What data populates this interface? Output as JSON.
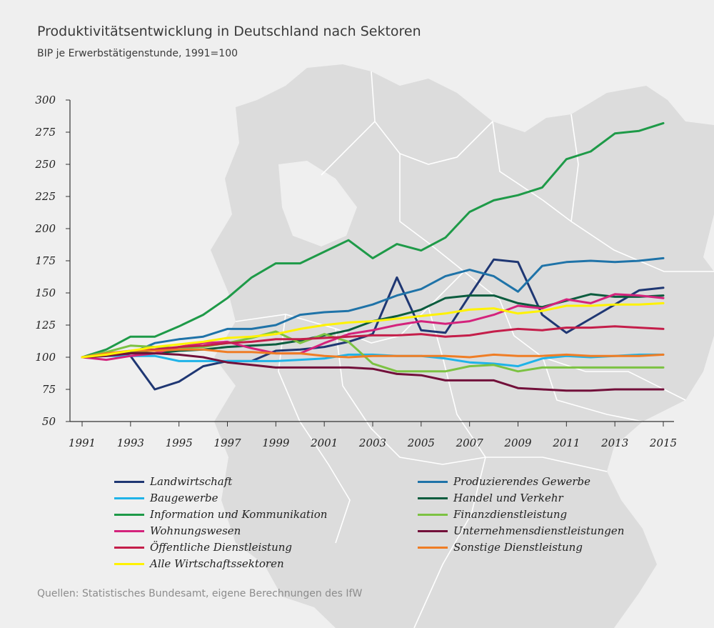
{
  "title": "Produktivitätsentwicklung in Deutschland nach Sektoren",
  "subtitle": "BIP je Erwerbstätigenstunde, 1991=100",
  "source": "Quellen: Statistisches Bundesamt, eigene Berechnungen des IfW",
  "background_map": "germany-states-map",
  "chart_data": {
    "type": "line",
    "title": "Produktivitätsentwicklung in Deutschland nach Sektoren",
    "subtitle": "BIP je Erwerbstätigenstunde, 1991=100",
    "xlabel": "",
    "ylabel": "",
    "x": [
      1991,
      1992,
      1993,
      1994,
      1995,
      1996,
      1997,
      1998,
      1999,
      2000,
      2001,
      2002,
      2003,
      2004,
      2005,
      2006,
      2007,
      2008,
      2009,
      2010,
      2011,
      2012,
      2013,
      2014,
      2015
    ],
    "xticks": [
      "1991",
      "1993",
      "1995",
      "1997",
      "1999",
      "2001",
      "2003",
      "2005",
      "2007",
      "2009",
      "2011",
      "2013",
      "2015"
    ],
    "yticks": [
      "50",
      "75",
      "100",
      "125",
      "150",
      "175",
      "200",
      "225",
      "250",
      "275",
      "300"
    ],
    "ylim": [
      50,
      300
    ],
    "xlim": [
      1991,
      2015
    ],
    "grid": false,
    "legend_position": "bottom",
    "series": [
      {
        "name": "Landwirtschaft",
        "color": "#1f3773",
        "values": [
          100,
          103,
          101,
          75,
          81,
          93,
          97,
          97,
          105,
          106,
          108,
          112,
          118,
          162,
          121,
          119,
          148,
          176,
          174,
          133,
          119,
          130,
          141,
          152,
          154
        ]
      },
      {
        "name": "Produzierendes Gewerbe",
        "color": "#1f73a8",
        "values": [
          100,
          102,
          103,
          111,
          114,
          116,
          122,
          122,
          125,
          133,
          135,
          136,
          141,
          148,
          153,
          163,
          168,
          163,
          151,
          171,
          174,
          175,
          174,
          175,
          177
        ]
      },
      {
        "name": "Baugewerbe",
        "color": "#1fb3e8",
        "values": [
          100,
          101,
          101,
          101,
          97,
          97,
          97,
          97,
          97,
          98,
          99,
          102,
          102,
          101,
          101,
          99,
          96,
          95,
          93,
          99,
          101,
          100,
          101,
          102,
          102
        ]
      },
      {
        "name": "Handel und Verkehr",
        "color": "#0b5c3e",
        "values": [
          100,
          102,
          104,
          103,
          105,
          106,
          108,
          109,
          110,
          113,
          117,
          121,
          128,
          132,
          137,
          146,
          148,
          148,
          142,
          139,
          144,
          149,
          147,
          147,
          148
        ]
      },
      {
        "name": "Information und Kommunikation",
        "color": "#1e9a48",
        "values": [
          100,
          106,
          116,
          116,
          124,
          133,
          146,
          162,
          173,
          173,
          182,
          191,
          177,
          188,
          183,
          193,
          213,
          222,
          226,
          232,
          254,
          260,
          274,
          276,
          282
        ]
      },
      {
        "name": "Finanzdienstleistung",
        "color": "#7cc242",
        "values": [
          100,
          104,
          109,
          108,
          107,
          108,
          111,
          115,
          120,
          111,
          118,
          112,
          95,
          89,
          89,
          89,
          93,
          94,
          89,
          92,
          92,
          92,
          92,
          92,
          92
        ]
      },
      {
        "name": "Wohnungswesen",
        "color": "#d4237c",
        "values": [
          100,
          98,
          101,
          103,
          108,
          111,
          112,
          107,
          103,
          103,
          111,
          118,
          121,
          125,
          128,
          126,
          128,
          133,
          140,
          138,
          145,
          142,
          149,
          148,
          146
        ]
      },
      {
        "name": "Unternehmensdienstleistungen",
        "color": "#72103a",
        "values": [
          100,
          101,
          103,
          103,
          102,
          100,
          96,
          94,
          92,
          92,
          92,
          92,
          91,
          87,
          86,
          82,
          82,
          82,
          76,
          75,
          74,
          74,
          75,
          75,
          75
        ]
      },
      {
        "name": "Öffentliche Dienstleistung",
        "color": "#c41e4a",
        "values": [
          100,
          102,
          105,
          106,
          108,
          109,
          111,
          112,
          114,
          114,
          115,
          116,
          117,
          117,
          118,
          116,
          117,
          120,
          122,
          121,
          123,
          123,
          124,
          123,
          122
        ]
      },
      {
        "name": "Sonstige Dienstleistung",
        "color": "#ef7d25",
        "values": [
          100,
          103,
          105,
          105,
          106,
          106,
          104,
          104,
          103,
          103,
          101,
          100,
          101,
          101,
          101,
          101,
          100,
          102,
          101,
          101,
          102,
          101,
          101,
          101,
          102
        ]
      },
      {
        "name": "Alle Wirtschaftssektoren",
        "color": "#fff200",
        "values": [
          100,
          102,
          105,
          108,
          110,
          112,
          115,
          116,
          118,
          122,
          125,
          127,
          128,
          130,
          132,
          134,
          137,
          138,
          134,
          136,
          140,
          140,
          141,
          141,
          142
        ]
      }
    ]
  },
  "legend": [
    {
      "label": "Landwirtschaft",
      "color": "#1f3773"
    },
    {
      "label": "Produzierendes Gewerbe",
      "color": "#1f73a8"
    },
    {
      "label": "Baugewerbe",
      "color": "#1fb3e8"
    },
    {
      "label": "Handel und Verkehr",
      "color": "#0b5c3e"
    },
    {
      "label": "Information und Kommunikation",
      "color": "#1e9a48"
    },
    {
      "label": "Finanzdienstleistung",
      "color": "#7cc242"
    },
    {
      "label": "Wohnungswesen",
      "color": "#d4237c"
    },
    {
      "label": "Unternehmensdienstleistungen",
      "color": "#72103a"
    },
    {
      "label": "Öffentliche Dienstleistung",
      "color": "#c41e4a"
    },
    {
      "label": "Sonstige Dienstleistung",
      "color": "#ef7d25"
    },
    {
      "label": "Alle Wirtschaftssektoren",
      "color": "#fff200"
    }
  ]
}
